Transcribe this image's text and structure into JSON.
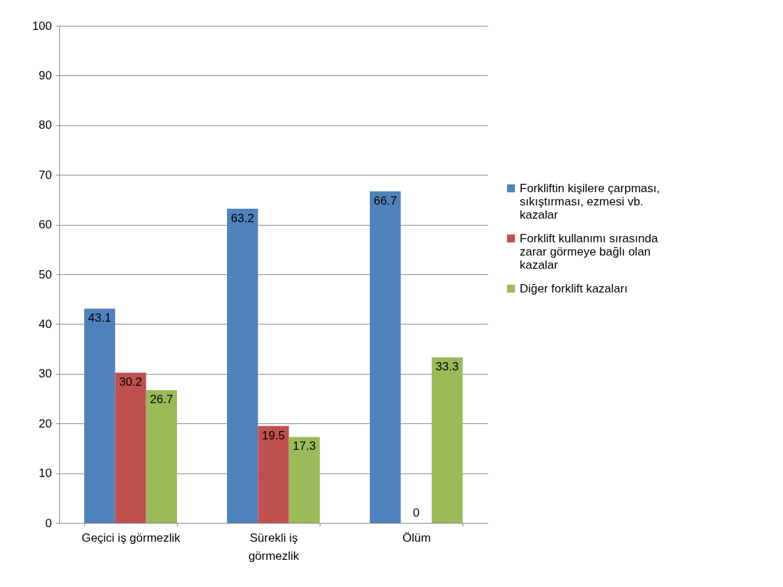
{
  "chart_data": {
    "type": "bar",
    "categories": [
      "Geçici iş görmezlik",
      "Sürekli iş görmezlik",
      "Ölüm"
    ],
    "series": [
      {
        "name": "Forkliftin kişilere çarpması, sıkıştırması, ezmesi vb. kazalar",
        "color": "#4f81bd",
        "values": [
          43.1,
          63.2,
          66.7
        ]
      },
      {
        "name": "Forklift kullanımı sırasında zarar görmeye bağlı olan kazalar",
        "color": "#c0504d",
        "values": [
          30.2,
          19.5,
          0
        ]
      },
      {
        "name": "Diğer forklift kazaları",
        "color": "#9bbb59",
        "values": [
          26.7,
          17.3,
          33.3
        ]
      }
    ],
    "ylim": [
      0,
      100
    ],
    "yticks": [
      0,
      10,
      20,
      30,
      40,
      50,
      60,
      70,
      80,
      90,
      100
    ],
    "grid": "y",
    "legend": "right",
    "data_labels": true
  }
}
